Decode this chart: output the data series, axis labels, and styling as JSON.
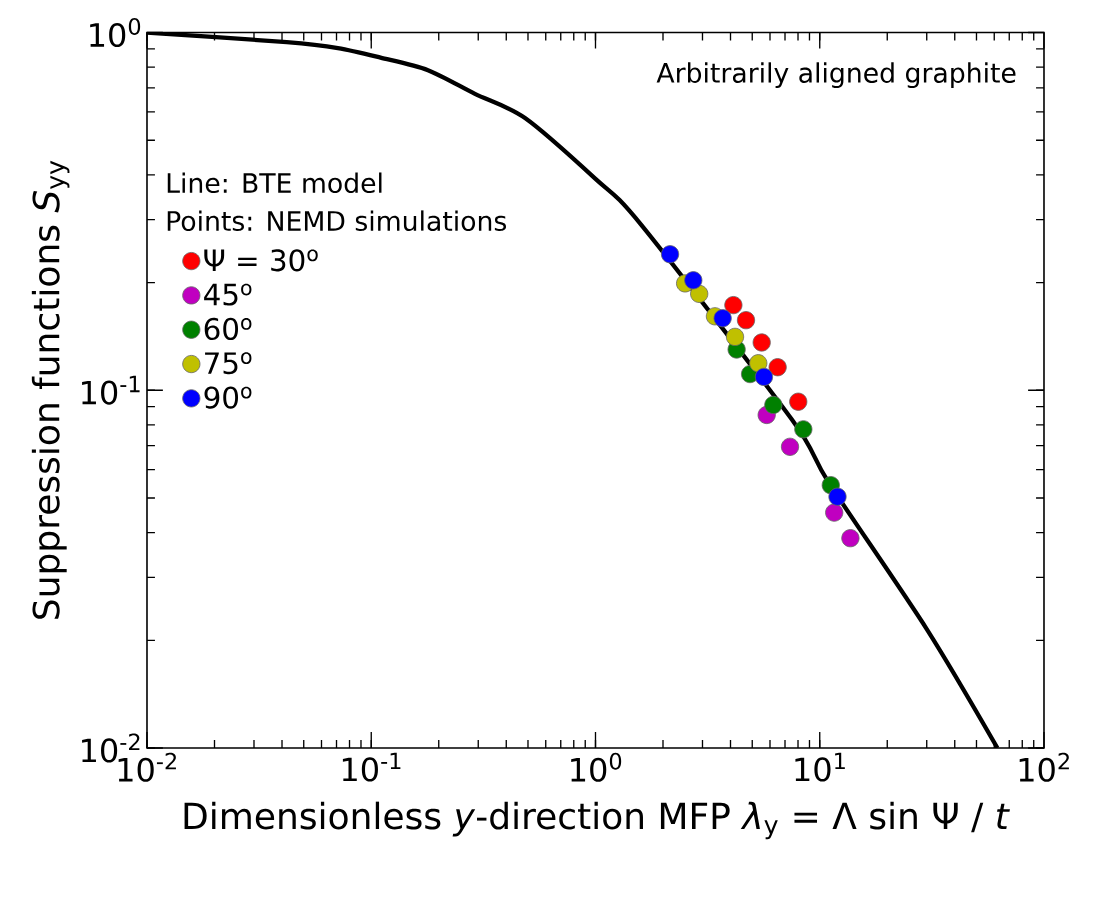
{
  "chart_data": {
    "type": "scatter",
    "xlabel": "Dimensionless *y*-direction MFP *λ*$_{y}$ = Λ sin Ψ / *t*",
    "ylabel": "Suppression functions *S*$_{yy}$",
    "annotations": [
      "Arbitrarily aligned graphite",
      "Line:  BTE model",
      "Points: NEMD simulations"
    ],
    "log": "xy",
    "xlim": [
      0.01,
      100
    ],
    "ylim": [
      0.01,
      1
    ],
    "xticks": [
      {
        "value": 0.01,
        "label": "10$^{-2}$"
      },
      {
        "value": 0.1,
        "label": "10$^{-1}$"
      },
      {
        "value": 1,
        "label": "10$^{0}$"
      },
      {
        "value": 10,
        "label": "10$^{1}$"
      },
      {
        "value": 100,
        "label": "10$^{2}$"
      }
    ],
    "yticks": [
      {
        "value": 0.01,
        "label": "10$^{-2}$"
      },
      {
        "value": 0.1,
        "label": "10$^{-1}$"
      },
      {
        "value": 1,
        "label": "10$^{0}$"
      }
    ],
    "grid": false,
    "legend": "top left",
    "marker": "circle",
    "series": [
      {
        "type": "line",
        "color": "#000000",
        "line_style": "solid",
        "marker": "none",
        "x": [
          0.01,
          0.042,
          0.071,
          0.11,
          0.179,
          0.29,
          0.485,
          1,
          1.6,
          7.5,
          11,
          30,
          62
        ],
        "values": [
          1,
          0.94,
          0.905,
          0.851,
          0.785,
          0.674,
          0.577,
          0.39,
          0.29,
          0.083,
          0.055,
          0.0215,
          0.01
        ]
      },
      {
        "name": "Ψ = 30$^{o}$",
        "color": "#ff0000",
        "x": [
          4.12,
          4.69,
          5.51,
          6.49,
          8.02
        ],
        "values": [
          0.173,
          0.157,
          0.136,
          0.116,
          0.0929
        ]
      },
      {
        "name": "45$^{o}$",
        "color": "#c000c0",
        "x": [
          5.8,
          7.37,
          11.6,
          13.7
        ],
        "values": [
          0.0853,
          0.0695,
          0.0455,
          0.0386
        ]
      },
      {
        "name": "60$^{o}$",
        "color": "#008000",
        "x": [
          4.26,
          4.89,
          6.21,
          8.45,
          11.2
        ],
        "values": [
          0.13,
          0.111,
          0.091,
          0.0778,
          0.0543
        ]
      },
      {
        "name": "75$^{o}$",
        "color": "#c0c000",
        "x": [
          2.51,
          2.9,
          3.41,
          4.19,
          5.32
        ],
        "values": [
          0.199,
          0.186,
          0.161,
          0.141,
          0.119
        ]
      },
      {
        "name": "90$^{o}$",
        "color": "#0000ff",
        "x": [
          2.15,
          2.73,
          3.69,
          5.64,
          12.0
        ],
        "values": [
          0.24,
          0.203,
          0.159,
          0.109,
          0.0504
        ]
      }
    ]
  }
}
